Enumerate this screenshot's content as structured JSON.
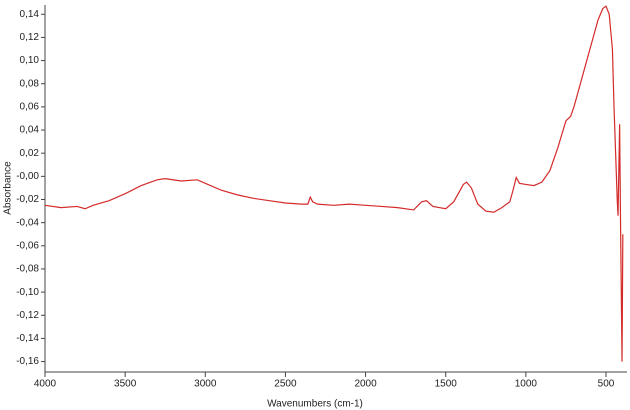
{
  "chart_data": {
    "type": "line",
    "x_label": "Wavenumbers (cm-1)",
    "y_label": "Absorbance",
    "color": "#d42a2a",
    "xlim": [
      4000,
      369
    ],
    "ylim": [
      -0.169,
      0.148
    ],
    "xticks": [
      4000,
      3500,
      3000,
      2500,
      2000,
      1500,
      1000,
      500
    ],
    "yticks": [
      {
        "value": 0.14,
        "label": "0,14"
      },
      {
        "value": 0.12,
        "label": "0,12"
      },
      {
        "value": 0.1,
        "label": "0,10"
      },
      {
        "value": 0.08,
        "label": "0,08"
      },
      {
        "value": 0.06,
        "label": "0,06"
      },
      {
        "value": 0.04,
        "label": "0,04"
      },
      {
        "value": 0.02,
        "label": "0,02"
      },
      {
        "value": 0,
        "label": "-0,00"
      },
      {
        "value": -0.02,
        "label": "-0,02"
      },
      {
        "value": -0.04,
        "label": "-0,04"
      },
      {
        "value": -0.06,
        "label": "-0,06"
      },
      {
        "value": -0.08,
        "label": "-0,08"
      },
      {
        "value": -0.1,
        "label": "-0,10"
      },
      {
        "value": -0.12,
        "label": "-0,12"
      },
      {
        "value": -0.14,
        "label": "-0,14"
      },
      {
        "value": -0.16,
        "label": "-0,16"
      }
    ],
    "x": [
      4000,
      3900,
      3800,
      3750,
      3700,
      3600,
      3500,
      3400,
      3300,
      3250,
      3150,
      3050,
      3000,
      2900,
      2800,
      2700,
      2600,
      2500,
      2400,
      2360,
      2345,
      2330,
      2300,
      2200,
      2100,
      2000,
      1900,
      1800,
      1700,
      1650,
      1620,
      1580,
      1500,
      1450,
      1390,
      1370,
      1340,
      1300,
      1250,
      1200,
      1150,
      1100,
      1080,
      1060,
      1040,
      1000,
      950,
      900,
      850,
      800,
      750,
      720,
      700,
      650,
      600,
      550,
      520,
      500,
      480,
      460,
      450,
      440,
      430,
      425,
      415,
      410,
      400,
      395
    ],
    "values": [
      -0.025,
      -0.027,
      -0.026,
      -0.028,
      -0.025,
      -0.021,
      -0.015,
      -0.008,
      -0.003,
      -0.002,
      -0.004,
      -0.003,
      -0.006,
      -0.012,
      -0.016,
      -0.019,
      -0.021,
      -0.023,
      -0.024,
      -0.024,
      -0.018,
      -0.022,
      -0.024,
      -0.025,
      -0.024,
      -0.025,
      -0.026,
      -0.027,
      -0.029,
      -0.022,
      -0.021,
      -0.026,
      -0.028,
      -0.022,
      -0.007,
      -0.005,
      -0.01,
      -0.024,
      -0.03,
      -0.031,
      -0.027,
      -0.022,
      -0.012,
      -0.001,
      -0.006,
      -0.007,
      -0.008,
      -0.005,
      0.005,
      0.025,
      0.048,
      0.052,
      0.06,
      0.085,
      0.11,
      0.135,
      0.145,
      0.147,
      0.14,
      0.11,
      0.06,
      0.02,
      -0.02,
      -0.034,
      0.045,
      -0.03,
      -0.16,
      -0.05
    ]
  }
}
